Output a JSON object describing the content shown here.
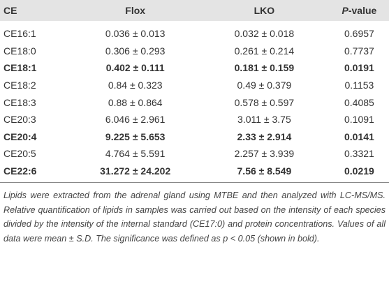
{
  "table": {
    "header": [
      "CE",
      "Flox",
      "LKO",
      "P-value"
    ],
    "rows": [
      {
        "cells": [
          "CE16:1",
          "0.036 ± 0.013",
          "0.032 ± 0.018",
          "0.6957"
        ],
        "bold": false
      },
      {
        "cells": [
          "CE18:0",
          "0.306 ± 0.293",
          "0.261 ± 0.214",
          "0.7737"
        ],
        "bold": false
      },
      {
        "cells": [
          "CE18:1",
          "0.402 ± 0.111",
          "0.181 ± 0.159",
          "0.0191"
        ],
        "bold": true
      },
      {
        "cells": [
          "CE18:2",
          "0.84 ± 0.323",
          "0.49 ± 0.379",
          "0.1153"
        ],
        "bold": false
      },
      {
        "cells": [
          "CE18:3",
          "0.88 ± 0.864",
          "0.578 ± 0.597",
          "0.4085"
        ],
        "bold": false
      },
      {
        "cells": [
          "CE20:3",
          "6.046 ± 2.961",
          "3.011 ± 3.75",
          "0.1091"
        ],
        "bold": false
      },
      {
        "cells": [
          "CE20:4",
          "9.225 ± 5.653",
          "2.33 ± 2.914",
          "0.0141"
        ],
        "bold": true
      },
      {
        "cells": [
          "CE20:5",
          "4.764 ± 5.591",
          "2.257 ± 3.939",
          "0.3321"
        ],
        "bold": false
      },
      {
        "cells": [
          "CE22:6",
          "31.272 ± 24.202",
          "7.56 ± 8.549",
          "0.0219"
        ],
        "bold": true
      }
    ]
  },
  "footnote": "Lipids were extracted from the adrenal gland using MTBE and then analyzed with LC-MS/MS. Relative quantification of lipids in samples was carried out based on the intensity of each species divided by the intensity of the internal standard (CE17:0) and protein concentrations. Values of all data were mean ± S.D. The significance was defined as p < 0.05 (shown in bold)."
}
